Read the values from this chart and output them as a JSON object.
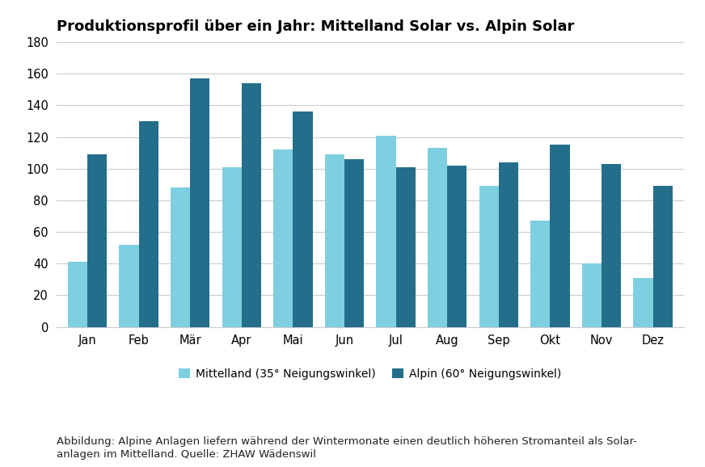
{
  "title": "Produktionsprofil über ein Jahr: Mittelland Solar vs. Alpin Solar",
  "months": [
    "Jan",
    "Feb",
    "Mär",
    "Apr",
    "Mai",
    "Jun",
    "Jul",
    "Aug",
    "Sep",
    "Okt",
    "Nov",
    "Dez"
  ],
  "mittelland": [
    41,
    52,
    88,
    101,
    112,
    109,
    121,
    113,
    89,
    67,
    40,
    31
  ],
  "alpin": [
    109,
    130,
    157,
    154,
    136,
    106,
    101,
    102,
    104,
    115,
    103,
    89
  ],
  "mittelland_color": "#7ecfe0",
  "alpin_color": "#236e8a",
  "ylim": [
    0,
    180
  ],
  "yticks": [
    0,
    20,
    40,
    60,
    80,
    100,
    120,
    140,
    160,
    180
  ],
  "legend_mittelland": "Mittelland (35° Neigungswinkel)",
  "legend_alpin": "Alpin (60° Neigungswinkel)",
  "caption_line1": "Abbildung: Alpine Anlagen liefern während der Wintermonate einen deutlich höheren Stromanteil als Solar-",
  "caption_line2": "anlagen im Mittelland. Quelle: ZHAW Wädenswil",
  "background_color": "#ffffff",
  "grid_color": "#cccccc",
  "bar_width": 0.38,
  "title_fontsize": 13,
  "axis_fontsize": 10.5,
  "legend_fontsize": 10,
  "caption_fontsize": 9.5
}
